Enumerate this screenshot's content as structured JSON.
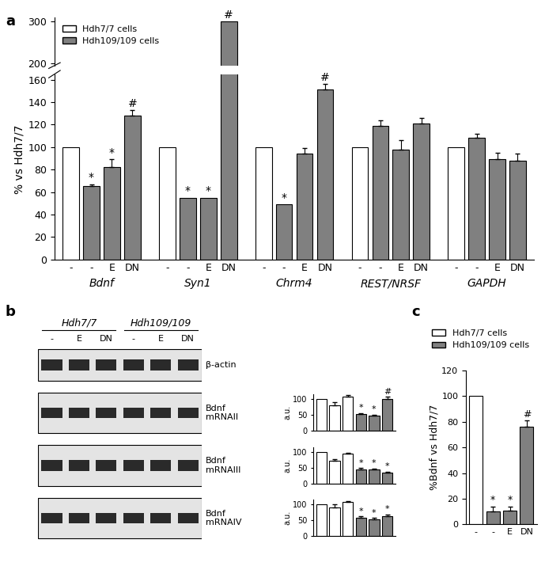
{
  "panel_labels": [
    "a",
    "b",
    "c"
  ],
  "chart_data": [
    {
      "type": "bar",
      "ylabel": "% vs Hdh7/7",
      "categories": [
        "-",
        "-",
        "E",
        "DN",
        "-",
        "-",
        "E",
        "DN",
        "-",
        "-",
        "E",
        "DN",
        "-",
        "-",
        "E",
        "DN",
        "-",
        "-",
        "E",
        "DN"
      ],
      "groups": [
        "Bdnf",
        "Syn1",
        "Chrm4",
        "REST/NRSF",
        "GAPDH"
      ],
      "series": [
        {
          "name": "Hdh7/7 cells",
          "color": "#ffffff",
          "values": [
            100,
            null,
            null,
            null,
            100,
            null,
            null,
            null,
            100,
            null,
            null,
            null,
            100,
            null,
            null,
            null,
            100,
            null,
            null,
            null
          ],
          "errors": [
            null,
            null,
            null,
            null,
            null,
            null,
            null,
            null,
            null,
            null,
            null,
            null,
            null,
            null,
            null,
            null,
            null,
            null,
            null,
            null
          ],
          "significance": [
            null,
            null,
            null,
            null,
            null,
            null,
            null,
            null,
            null,
            null,
            null,
            null,
            null,
            null,
            null,
            null,
            null,
            null,
            null,
            null
          ]
        },
        {
          "name": "Hdh109/109 cells",
          "color": "#808080",
          "values": [
            null,
            65,
            82,
            128,
            null,
            55,
            55,
            300,
            null,
            49,
            94,
            151,
            null,
            119,
            98,
            121,
            null,
            108,
            89,
            88
          ],
          "errors": [
            null,
            2,
            7,
            5,
            null,
            null,
            null,
            null,
            null,
            null,
            5,
            5,
            null,
            5,
            8,
            5,
            null,
            4,
            6,
            6
          ],
          "significance": [
            null,
            "*",
            "*",
            "#",
            null,
            "*",
            "*",
            "#",
            null,
            "*",
            null,
            "#",
            null,
            null,
            null,
            null,
            null,
            null,
            null,
            null
          ]
        }
      ],
      "axes": [
        {
          "ylim": [
            195,
            310
          ],
          "yticks": [
            200,
            300
          ]
        },
        {
          "ylim": [
            0,
            165
          ],
          "yticks": [
            0,
            20,
            40,
            60,
            80,
            100,
            120,
            140,
            160
          ]
        }
      ],
      "legend": "upper left"
    },
    {
      "type": "bar",
      "ylabel": "a.u.",
      "categories": [
        null,
        null,
        null,
        null,
        null,
        null
      ],
      "tick_labels": "y",
      "series": [
        {
          "name": "Hdh7/7 cells",
          "color": "#ffffff",
          "values": [
            100,
            80,
            108,
            null,
            null,
            null
          ],
          "errors": [
            null,
            10,
            4,
            null,
            null,
            null
          ],
          "significance": [
            null,
            null,
            null,
            null,
            null,
            null
          ]
        },
        {
          "name": "Hdh109/109 cells",
          "color": "#808080",
          "values": [
            null,
            null,
            null,
            53,
            46,
            100
          ],
          "errors": [
            null,
            null,
            null,
            3,
            4,
            8
          ],
          "significance": [
            null,
            null,
            null,
            "*",
            "*",
            "#"
          ]
        }
      ],
      "ylim": [
        0,
        115
      ],
      "yticks": [
        0,
        50,
        100
      ]
    },
    {
      "type": "bar",
      "ylabel": "a.u.",
      "categories": [
        null,
        null,
        null,
        null,
        null,
        null
      ],
      "tick_labels": "y",
      "series": [
        {
          "name": "Hdh7/7 cells",
          "color": "#ffffff",
          "values": [
            100,
            72,
            95,
            null,
            null,
            null
          ],
          "errors": [
            null,
            5,
            4,
            null,
            null,
            null
          ],
          "significance": [
            null,
            null,
            null,
            null,
            null,
            null
          ]
        },
        {
          "name": "Hdh109/109 cells",
          "color": "#808080",
          "values": [
            null,
            null,
            null,
            44,
            44,
            35
          ],
          "errors": [
            null,
            null,
            null,
            5,
            4,
            3
          ],
          "significance": [
            null,
            null,
            null,
            "*",
            "*",
            "*"
          ]
        }
      ],
      "ylim": [
        0,
        115
      ],
      "yticks": [
        0,
        50,
        100
      ]
    },
    {
      "type": "bar",
      "ylabel": "a.u.",
      "categories": [
        null,
        null,
        null,
        null,
        null,
        null
      ],
      "tick_labels": "y",
      "series": [
        {
          "name": "Hdh7/7 cells",
          "color": "#ffffff",
          "values": [
            100,
            92,
            108,
            null,
            null,
            null
          ],
          "errors": [
            null,
            8,
            4,
            null,
            null,
            null
          ],
          "significance": [
            null,
            null,
            null,
            null,
            null,
            null
          ]
        },
        {
          "name": "Hdh109/109 cells",
          "color": "#808080",
          "values": [
            null,
            null,
            null,
            58,
            52,
            62
          ],
          "errors": [
            null,
            null,
            null,
            5,
            6,
            7
          ],
          "significance": [
            null,
            null,
            null,
            "*",
            "*",
            "*"
          ]
        }
      ],
      "ylim": [
        0,
        115
      ],
      "yticks": [
        0,
        50,
        100
      ]
    },
    {
      "type": "bar",
      "ylabel": "%Bdnf vs Hdh7/7",
      "categories": [
        "-",
        "-",
        "E",
        "DN"
      ],
      "series": [
        {
          "name": "Hdh7/7 cells",
          "color": "#ffffff",
          "values": [
            100,
            null,
            null,
            null
          ],
          "errors": [
            null,
            null,
            null,
            null
          ],
          "significance": [
            null,
            null,
            null,
            null
          ]
        },
        {
          "name": "Hdh109/109 cells",
          "color": "#808080",
          "values": [
            null,
            10,
            11,
            76
          ],
          "errors": [
            null,
            4,
            3,
            5
          ],
          "significance": [
            null,
            "*",
            "*",
            "#"
          ]
        }
      ],
      "ylim": [
        0,
        120
      ],
      "yticks": [
        0,
        20,
        40,
        60,
        80,
        100,
        120
      ],
      "legend": "upper right"
    }
  ],
  "gel": {
    "groups": [
      {
        "label": "Hdh7/7",
        "lanes": [
          "-",
          "E",
          "DN"
        ]
      },
      {
        "label": "Hdh109/109",
        "lanes": [
          "-",
          "E",
          "DN"
        ]
      }
    ],
    "rows": [
      "β-actin",
      "Bdnf\nmRNAII",
      "Bdnf\nmRNAIII",
      "Bdnf\nmRNAIV"
    ]
  }
}
